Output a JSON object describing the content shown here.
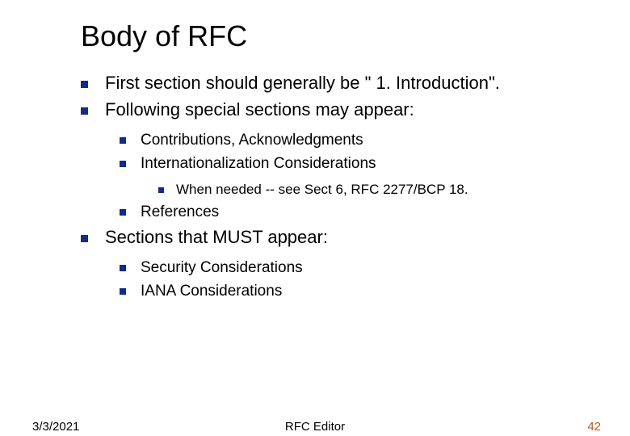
{
  "title": "Body of RFC",
  "bullets": {
    "l1_0": "First section should generally be \" 1. Introduction\".",
    "l1_1": "Following special sections may appear:",
    "l2_0": "Contributions, Acknowledgments",
    "l2_1": "Internationalization Considerations",
    "l3_0": "When needed -- see Sect 6, RFC 2277/BCP 18.",
    "l2_2": "References",
    "l1_2": "Sections that MUST appear:",
    "l2_3": "Security Considerations",
    "l2_4": "IANA Considerations"
  },
  "footer": {
    "date": "3/3/2021",
    "center": "RFC Editor",
    "page": "42"
  },
  "colors": {
    "bullet": "#0f2b8e",
    "pageNumber": "#b85c18",
    "text": "#000000",
    "background": "#ffffff"
  },
  "fonts": {
    "title_size": 36,
    "l1_size": 22,
    "l2_size": 19,
    "l3_size": 17,
    "footer_size": 15,
    "family": "Verdana"
  }
}
